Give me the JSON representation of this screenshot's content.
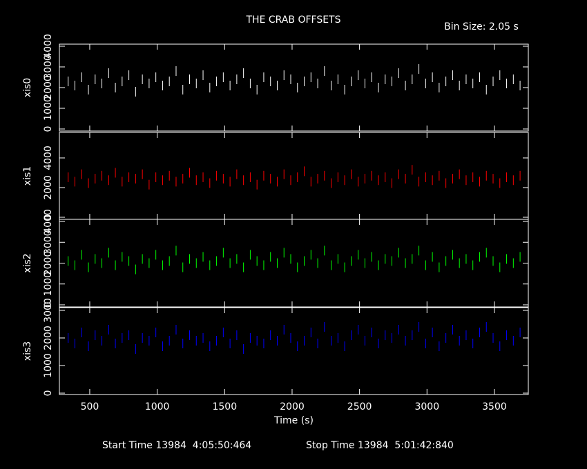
{
  "header": {
    "title": "THE CRAB OFFSETS",
    "bin_size": "Bin Size: 2.05 s"
  },
  "chart_data": [
    {
      "type": "scatter",
      "ylabel": "xis0",
      "color": "#ffffff",
      "xlim": [
        275,
        3751
      ],
      "ylim": [
        -100,
        4100
      ],
      "yticks": [
        0,
        1000,
        2000,
        3000,
        4000
      ],
      "x": [
        340,
        390,
        440,
        490,
        540,
        590,
        640,
        690,
        740,
        790,
        840,
        890,
        940,
        990,
        1040,
        1090,
        1140,
        1190,
        1240,
        1290,
        1340,
        1390,
        1440,
        1490,
        1540,
        1590,
        1640,
        1690,
        1740,
        1790,
        1840,
        1890,
        1940,
        1990,
        2040,
        2090,
        2140,
        2190,
        2240,
        2290,
        2340,
        2390,
        2440,
        2490,
        2540,
        2590,
        2640,
        2690,
        2740,
        2790,
        2840,
        2890,
        2940,
        2990,
        3040,
        3090,
        3140,
        3190,
        3240,
        3290,
        3340,
        3390,
        3440,
        3490,
        3540,
        3590,
        3640,
        3690
      ],
      "values": [
        2300,
        2100,
        2500,
        1900,
        2400,
        2200,
        2700,
        2000,
        2300,
        2600,
        1800,
        2400,
        2200,
        2500,
        2100,
        2300,
        2800,
        1900,
        2400,
        2200,
        2600,
        2000,
        2300,
        2500,
        2100,
        2400,
        2700,
        2200,
        1900,
        2500,
        2300,
        2100,
        2600,
        2400,
        2000,
        2300,
        2500,
        2200,
        2800,
        2100,
        2400,
        1900,
        2300,
        2600,
        2200,
        2500,
        2000,
        2400,
        2300,
        2700,
        2100,
        2400,
        2900,
        2200,
        2500,
        2000,
        2300,
        2600,
        2100,
        2400,
        2200,
        2500,
        1900,
        2300,
        2600,
        2200,
        2400,
        2100
      ]
    },
    {
      "type": "scatter",
      "ylabel": "xis1",
      "color": "#ff0000",
      "xlim": [
        275,
        3751
      ],
      "ylim": [
        -140,
        5720
      ],
      "yticks": [
        0,
        2000,
        4000
      ],
      "x": [
        340,
        390,
        440,
        490,
        540,
        590,
        640,
        690,
        740,
        790,
        840,
        890,
        940,
        990,
        1040,
        1090,
        1140,
        1190,
        1240,
        1290,
        1340,
        1390,
        1440,
        1490,
        1540,
        1590,
        1640,
        1690,
        1740,
        1790,
        1840,
        1890,
        1940,
        1990,
        2040,
        2090,
        2140,
        2190,
        2240,
        2290,
        2340,
        2390,
        2440,
        2490,
        2540,
        2590,
        2640,
        2690,
        2740,
        2790,
        2840,
        2890,
        2940,
        2990,
        3040,
        3090,
        3140,
        3190,
        3240,
        3290,
        3340,
        3390,
        3440,
        3490,
        3540,
        3590,
        3640,
        3690
      ],
      "values": [
        2700,
        2400,
        2900,
        2300,
        2600,
        2800,
        2500,
        3000,
        2400,
        2700,
        2600,
        2900,
        2200,
        2700,
        2500,
        2800,
        2400,
        2600,
        3000,
        2500,
        2700,
        2300,
        2800,
        2600,
        2400,
        2900,
        2500,
        2700,
        2200,
        2800,
        2600,
        2400,
        2900,
        2500,
        2700,
        3100,
        2400,
        2600,
        2800,
        2300,
        2700,
        2500,
        2900,
        2400,
        2600,
        2800,
        2500,
        2700,
        2300,
        2900,
        2600,
        3200,
        2400,
        2700,
        2500,
        2800,
        2300,
        2600,
        2900,
        2500,
        2700,
        2400,
        2800,
        2600,
        2300,
        2700,
        2500,
        2800
      ]
    },
    {
      "type": "scatter",
      "ylabel": "xis2",
      "color": "#00ff00",
      "xlim": [
        275,
        3751
      ],
      "ylim": [
        -100,
        4100
      ],
      "yticks": [
        0,
        1000,
        2000,
        3000,
        4000
      ],
      "x": [
        340,
        390,
        440,
        490,
        540,
        590,
        640,
        690,
        740,
        790,
        840,
        890,
        940,
        990,
        1040,
        1090,
        1140,
        1190,
        1240,
        1290,
        1340,
        1390,
        1440,
        1490,
        1540,
        1590,
        1640,
        1690,
        1740,
        1790,
        1840,
        1890,
        1940,
        1990,
        2040,
        2090,
        2140,
        2190,
        2240,
        2290,
        2340,
        2390,
        2440,
        2490,
        2540,
        2590,
        2640,
        2690,
        2740,
        2790,
        2840,
        2890,
        2940,
        2990,
        3040,
        3090,
        3140,
        3190,
        3240,
        3290,
        3340,
        3390,
        3440,
        3490,
        3540,
        3590,
        3640,
        3690
      ],
      "values": [
        2100,
        1900,
        2400,
        1800,
        2200,
        2000,
        2500,
        1900,
        2300,
        2100,
        1700,
        2200,
        2000,
        2400,
        1900,
        2100,
        2600,
        1800,
        2200,
        2000,
        2300,
        1900,
        2100,
        2500,
        2000,
        2200,
        1800,
        2400,
        2100,
        1900,
        2300,
        2000,
        2500,
        2200,
        1800,
        2100,
        2400,
        2000,
        2600,
        1900,
        2200,
        1800,
        2100,
        2400,
        2000,
        2300,
        1900,
        2200,
        2100,
        2500,
        2000,
        2200,
        2600,
        1900,
        2300,
        1800,
        2100,
        2400,
        2000,
        2200,
        1900,
        2300,
        2500,
        2100,
        1800,
        2200,
        2000,
        2300
      ]
    },
    {
      "type": "scatter",
      "ylabel": "xis3",
      "color": "#0000ff",
      "xlim": [
        275,
        3751
      ],
      "ylim": [
        -50,
        3100
      ],
      "yticks": [
        0,
        1000,
        2000,
        3000
      ],
      "xticks": [
        500,
        1000,
        1500,
        2000,
        2500,
        3000,
        3500
      ],
      "xlabel": "Time (s)",
      "x": [
        340,
        390,
        440,
        490,
        540,
        590,
        640,
        690,
        740,
        790,
        840,
        890,
        940,
        990,
        1040,
        1090,
        1140,
        1190,
        1240,
        1290,
        1340,
        1390,
        1440,
        1490,
        1540,
        1590,
        1640,
        1690,
        1740,
        1790,
        1840,
        1890,
        1940,
        1990,
        2040,
        2090,
        2140,
        2190,
        2240,
        2290,
        2340,
        2390,
        2440,
        2490,
        2540,
        2590,
        2640,
        2690,
        2740,
        2790,
        2840,
        2890,
        2940,
        2990,
        3040,
        3090,
        3140,
        3190,
        3240,
        3290,
        3340,
        3390,
        3440,
        3490,
        3540,
        3590,
        3640,
        3690
      ],
      "values": [
        2000,
        1800,
        2200,
        1700,
        2100,
        1900,
        2300,
        1800,
        2000,
        2100,
        1600,
        2000,
        1900,
        2200,
        1700,
        1900,
        2300,
        1800,
        2100,
        1900,
        2000,
        1700,
        1900,
        2200,
        1800,
        2100,
        1600,
        2000,
        1900,
        1800,
        2100,
        1900,
        2300,
        2000,
        1700,
        1900,
        2200,
        1800,
        2400,
        1900,
        2000,
        1700,
        2100,
        2300,
        1900,
        2200,
        1800,
        2100,
        2000,
        2300,
        1900,
        2100,
        2400,
        1800,
        2200,
        1700,
        2000,
        2300,
        1900,
        2100,
        1800,
        2200,
        2400,
        2000,
        1700,
        2100,
        1900,
        2200
      ]
    }
  ],
  "footer": {
    "start": "Start Time 13984  4:05:50:464",
    "stop": "Stop Time 13984  5:01:42:840"
  }
}
